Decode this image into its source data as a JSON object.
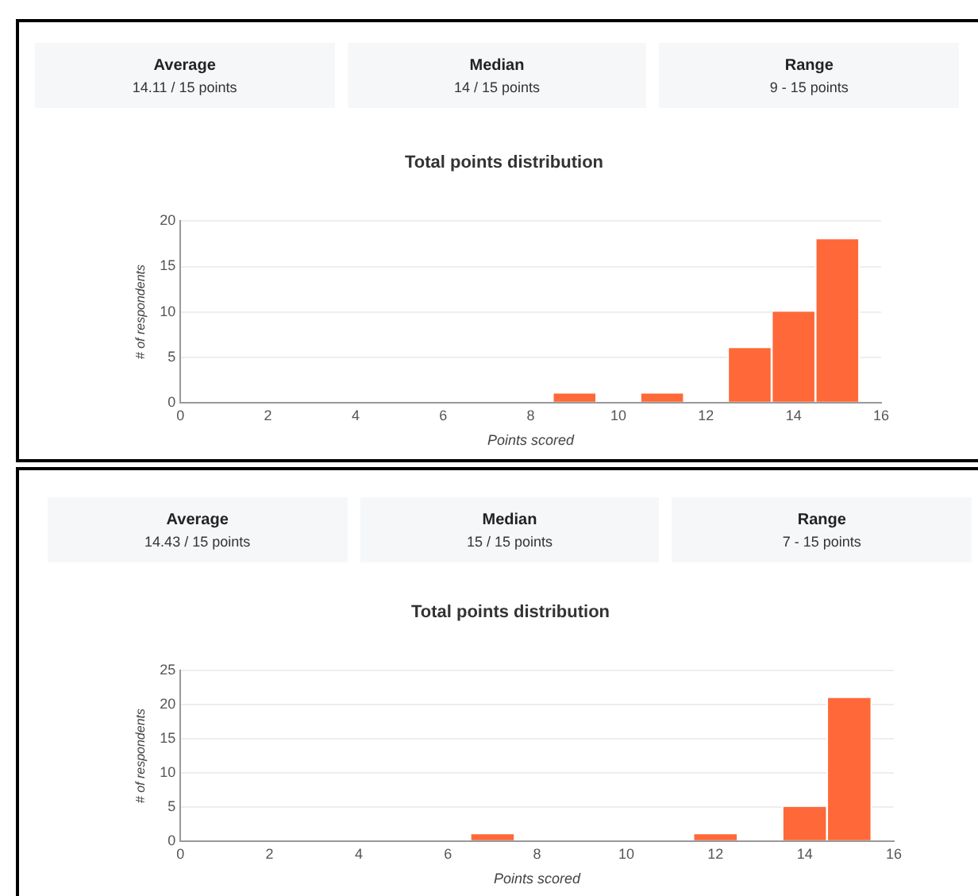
{
  "chart_data": [
    {
      "type": "other",
      "annotations": [
        "Average",
        "14.11 / 15 points",
        "Median",
        "14 / 15 points",
        "Range",
        "9 - 15 points"
      ]
    },
    {
      "type": "histogram",
      "title": "Total points distribution",
      "xlabel": "Points scored",
      "ylabel": "# of respondents",
      "bins": [
        8.5,
        9.5,
        10.5,
        11.5,
        12.5,
        13.5,
        14.5,
        15.5
      ],
      "values": [
        1,
        0,
        1,
        0,
        6,
        10,
        18
      ],
      "color": "#ff6838",
      "xlim": [
        0,
        16
      ],
      "xticks": [
        0,
        2,
        4,
        6,
        8,
        10,
        12,
        14,
        16
      ],
      "ylim": [
        0,
        20
      ],
      "yticks": [
        0,
        5,
        10,
        15,
        20
      ],
      "grid": "y",
      "legend": false
    },
    {
      "type": "other",
      "annotations": [
        "Average",
        "14.43 / 15 points",
        "Median",
        "15 / 15 points",
        "Range",
        "7 - 15 points"
      ]
    },
    {
      "type": "histogram",
      "title": "Total points distribution",
      "xlabel": "Points scored",
      "ylabel": "# of respondents",
      "bins": [
        6.5,
        7.5,
        8.5,
        9.5,
        10.5,
        11.5,
        12.5,
        13.5,
        14.5,
        15.5
      ],
      "values": [
        1,
        0,
        0,
        0,
        0,
        1,
        0,
        5,
        21
      ],
      "color": "#ff6838",
      "xlim": [
        0,
        16
      ],
      "xticks": [
        0,
        2,
        4,
        6,
        8,
        10,
        12,
        14,
        16
      ],
      "ylim": [
        0,
        25
      ],
      "yticks": [
        0,
        5,
        10,
        15,
        20,
        25
      ],
      "grid": "y",
      "legend": false
    }
  ]
}
